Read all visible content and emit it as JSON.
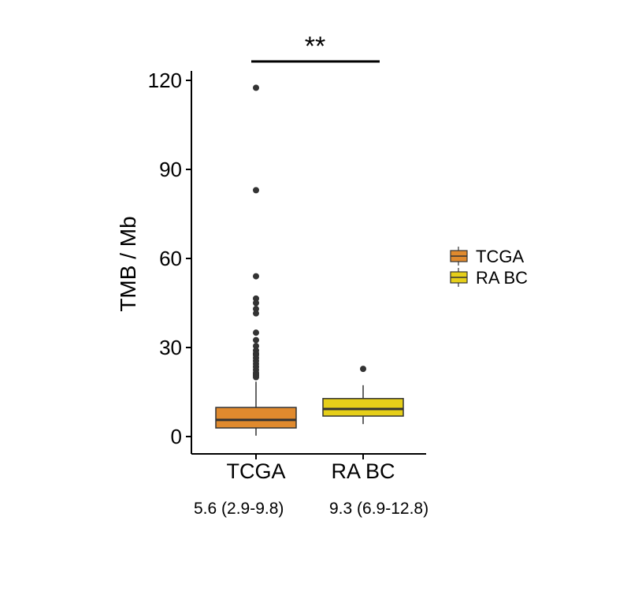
{
  "chart_data": {
    "type": "box",
    "ylabel": "TMB / Mb",
    "ylim": [
      -5,
      123
    ],
    "yticks": [
      0,
      30,
      60,
      90,
      120
    ],
    "categories": [
      "TCGA",
      "RA BC"
    ],
    "legend": {
      "placement": "right",
      "entries": [
        {
          "name": "TCGA",
          "color": "#E08A2E"
        },
        {
          "name": "RA BC",
          "color": "#E6CF19"
        }
      ]
    },
    "series": [
      {
        "name": "TCGA",
        "color": "#E08A2E",
        "min": 0.3,
        "q1": 2.9,
        "median": 5.6,
        "q3": 9.8,
        "max": 18.5,
        "outliers": [
          117.5,
          83,
          54,
          46.5,
          45,
          43,
          41.5,
          35,
          32.5,
          30.5,
          29,
          28,
          27.5,
          26.5,
          25.5,
          24.5,
          23.5,
          22.5,
          21.5,
          21,
          20.5,
          20
        ]
      },
      {
        "name": "RA BC",
        "color": "#E6CF19",
        "min": 4.2,
        "q1": 6.9,
        "median": 9.3,
        "q3": 12.8,
        "max": 17.3,
        "outliers": [
          22.8
        ]
      }
    ],
    "summary_labels": [
      "5.6 (2.9-9.8)",
      "9.3 (6.9-12.8)"
    ],
    "significance": "**",
    "grid": false
  }
}
